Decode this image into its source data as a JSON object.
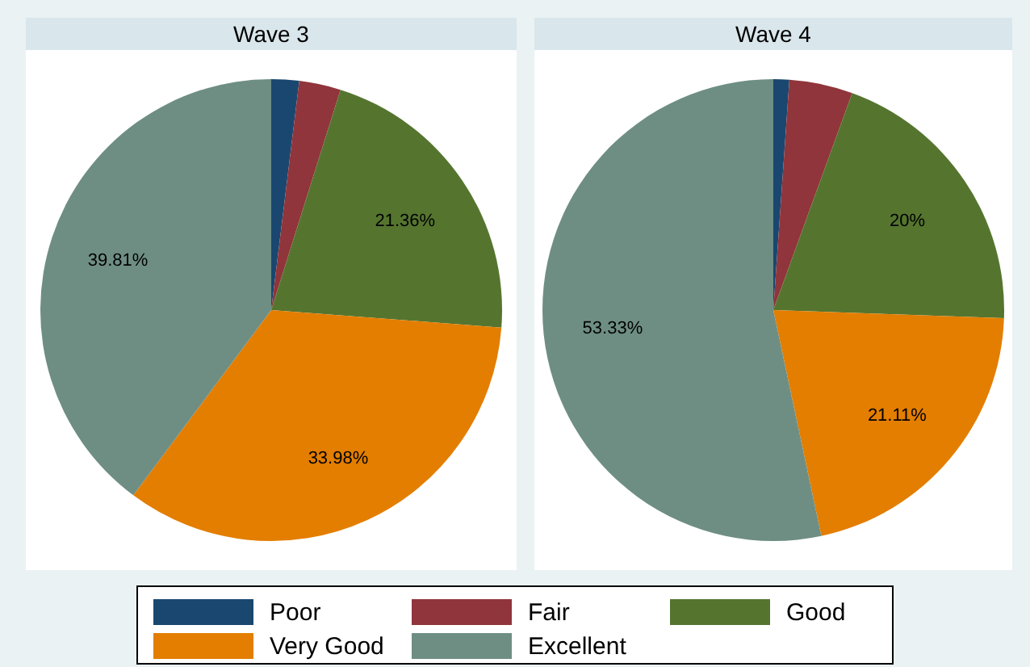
{
  "chart_data": [
    {
      "type": "pie",
      "title": "Wave 3",
      "categories": [
        "Poor",
        "Fair",
        "Good",
        "Very Good",
        "Excellent"
      ],
      "values": [
        1.94,
        2.91,
        21.36,
        33.98,
        39.81
      ],
      "colors": [
        "#1a476f",
        "#90353b",
        "#55752f",
        "#e37e00",
        "#6e8e84"
      ],
      "value_labels": [
        null,
        null,
        "21.36%",
        "33.98%",
        "39.81%"
      ],
      "legend": "bottom"
    },
    {
      "type": "pie",
      "title": "Wave 4",
      "categories": [
        null,
        null,
        null,
        null,
        null
      ],
      "values": [
        1.11,
        4.44,
        20,
        21.11,
        53.33
      ],
      "colors": [
        "#1a476f",
        "#90353b",
        "#55752f",
        "#e37e00",
        "#6e8e84"
      ],
      "value_labels": [
        null,
        null,
        "20%",
        "21.11%",
        "53.33%"
      ]
    }
  ]
}
